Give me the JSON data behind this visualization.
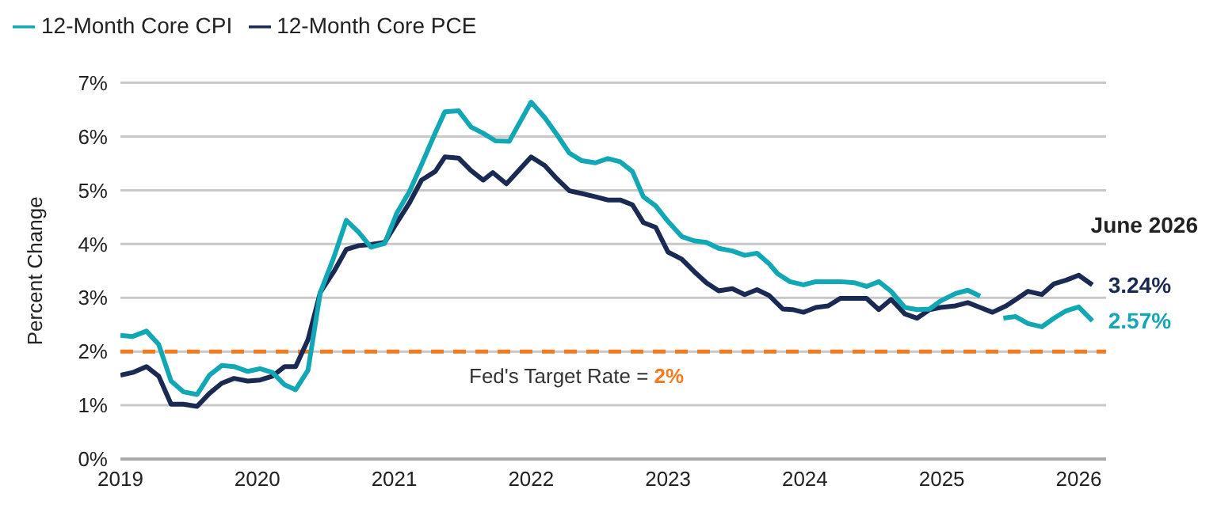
{
  "chart_data": {
    "type": "line",
    "ylabel": "Percent Change",
    "legend": "top left",
    "grid": "y",
    "line_style": "solid",
    "marker": "none",
    "xlim": [
      2019,
      2026.2
    ],
    "xticks": [
      2019,
      2020,
      2021,
      2022,
      2023,
      2024,
      2025,
      2026
    ],
    "ylim": [
      0,
      7
    ],
    "yticks": [
      {
        "value": 0,
        "label": "0%"
      },
      {
        "value": 1,
        "label": "1%"
      },
      {
        "value": 2,
        "label": "2%"
      },
      {
        "value": 3,
        "label": "3%"
      },
      {
        "value": 4,
        "label": "4%"
      },
      {
        "value": 5,
        "label": "5%"
      },
      {
        "value": 6,
        "label": "6%"
      },
      {
        "value": 7,
        "label": "7%"
      }
    ],
    "ref_lines": [
      {
        "axis": "y",
        "value": 2,
        "label": "Fed's Target Rate = 2%",
        "color": "#f47b20",
        "line_style": "dashed"
      }
    ],
    "annotations": [
      "June 2026",
      {
        "text": "3.24%",
        "x": 2026.1,
        "y": 3.24
      },
      {
        "text": "2.57%",
        "x": 2026.1,
        "y": 2.57
      }
    ],
    "series": [
      {
        "name": "12-Month Core PCE",
        "color": "#1b2a52",
        "x": [
          2019,
          2019.09,
          2019.19,
          2019.28,
          2019.37,
          2019.46,
          2019.56,
          2019.65,
          2019.74,
          2019.83,
          2019.93,
          2020.02,
          2020.11,
          2020.2,
          2020.28,
          2020.37,
          2020.46,
          2020.56,
          2020.65,
          2020.74,
          2020.83,
          2020.93,
          2021.02,
          2021.11,
          2021.2,
          2021.3,
          2021.37,
          2021.47,
          2021.56,
          2021.65,
          2021.72,
          2021.82,
          2021.91,
          2022.0,
          2022.1,
          2022.19,
          2022.28,
          2022.37,
          2022.47,
          2022.56,
          2022.65,
          2022.74,
          2022.82,
          2022.91,
          2023.0,
          2023.1,
          2023.19,
          2023.28,
          2023.37,
          2023.47,
          2023.56,
          2023.65,
          2023.74,
          2023.84,
          2023.91,
          2023.99,
          2024.08,
          2024.17,
          2024.26,
          2024.36,
          2024.45,
          2024.54,
          2024.63,
          2024.73,
          2024.82,
          2024.91,
          2024.99,
          2025.1,
          2025.19,
          2025.28,
          2025.37,
          2025.47,
          2025.56,
          2025.63,
          2025.73,
          2025.82,
          2025.91,
          2026.0,
          2026.1
        ],
        "values": [
          1.56,
          1.61,
          1.72,
          1.54,
          1.02,
          1.02,
          0.98,
          1.22,
          1.41,
          1.5,
          1.45,
          1.47,
          1.54,
          1.72,
          1.72,
          2.22,
          3.1,
          3.49,
          3.9,
          3.97,
          3.99,
          4.03,
          4.4,
          4.76,
          5.19,
          5.35,
          5.62,
          5.6,
          5.37,
          5.19,
          5.33,
          5.12,
          5.37,
          5.62,
          5.46,
          5.21,
          4.99,
          4.94,
          4.88,
          4.82,
          4.82,
          4.73,
          4.4,
          4.31,
          3.85,
          3.72,
          3.49,
          3.28,
          3.13,
          3.17,
          3.06,
          3.15,
          3.04,
          2.79,
          2.78,
          2.73,
          2.82,
          2.85,
          2.99,
          2.99,
          2.99,
          2.78,
          2.97,
          2.7,
          2.62,
          2.78,
          2.82,
          2.85,
          2.91,
          2.82,
          2.73,
          2.85,
          3.0,
          3.12,
          3.06,
          3.26,
          3.33,
          3.42,
          3.24
        ]
      },
      {
        "name": "12-Month Core CPI",
        "color": "#12a7b5",
        "x": [
          2019,
          2019.09,
          2019.19,
          2019.28,
          2019.37,
          2019.46,
          2019.56,
          2019.65,
          2019.74,
          2019.83,
          2019.93,
          2020.02,
          2020.11,
          2020.2,
          2020.28,
          2020.37,
          2020.46,
          2020.56,
          2020.65,
          2020.74,
          2020.83,
          2020.93,
          2021.02,
          2021.11,
          2021.2,
          2021.3,
          2021.37,
          2021.47,
          2021.56,
          2021.65,
          2021.74,
          2021.84,
          2022.0,
          2022.1,
          2022.19,
          2022.28,
          2022.37,
          2022.47,
          2022.56,
          2022.65,
          2022.74,
          2022.82,
          2022.91,
          2023.0,
          2023.1,
          2023.19,
          2023.28,
          2023.37,
          2023.47,
          2023.56,
          2023.65,
          2023.74,
          2023.8,
          2023.89,
          2023.99,
          2024.08,
          2024.17,
          2024.26,
          2024.36,
          2024.45,
          2024.54,
          2024.63,
          2024.73,
          2024.82,
          2024.91,
          2024.99,
          2025.1,
          2025.19,
          2025.28,
          2025.36,
          2025.45,
          2025.54,
          2025.63,
          2025.73,
          2025.82,
          2025.91,
          2026.0,
          2026.1
        ],
        "values": [
          2.3,
          2.28,
          2.38,
          2.13,
          1.45,
          1.25,
          1.2,
          1.56,
          1.74,
          1.72,
          1.63,
          1.68,
          1.61,
          1.38,
          1.29,
          1.65,
          3.1,
          3.76,
          4.44,
          4.22,
          3.94,
          4.01,
          4.58,
          4.97,
          5.48,
          6.07,
          6.46,
          6.48,
          6.18,
          6.06,
          5.92,
          5.91,
          6.64,
          6.35,
          6.03,
          5.69,
          5.55,
          5.51,
          5.59,
          5.53,
          5.35,
          4.88,
          4.71,
          4.42,
          4.14,
          4.06,
          4.03,
          3.92,
          3.87,
          3.79,
          3.83,
          3.63,
          3.45,
          3.3,
          3.24,
          3.3,
          3.3,
          3.3,
          3.28,
          3.21,
          3.3,
          3.12,
          2.82,
          2.78,
          2.79,
          2.94,
          3.08,
          3.14,
          3.03,
          null,
          2.62,
          2.65,
          2.52,
          2.46,
          2.62,
          2.76,
          2.83,
          2.57
        ]
      }
    ]
  }
}
